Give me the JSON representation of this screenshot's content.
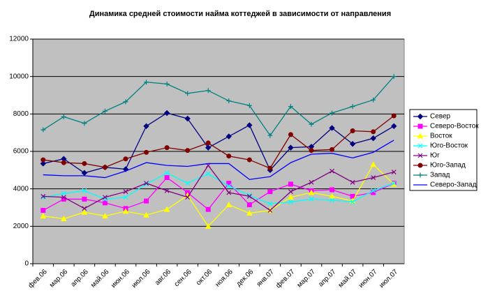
{
  "chart_data": {
    "type": "line",
    "title": "Динамика средней стоимости найма коттеджей в зависимости от направления",
    "categories": [
      "фев.06",
      "мар.06",
      "апр.06",
      "май.06",
      "июн.06",
      "июл.06",
      "авг.06",
      "сен.06",
      "окт.06",
      "ноя.06",
      "дек.06",
      "янв.07",
      "фев.07",
      "мар.07",
      "апр.07",
      "май.07",
      "июн.07",
      "июл.07"
    ],
    "ylim": [
      0,
      12000
    ],
    "yticks": [
      0,
      2000,
      4000,
      6000,
      8000,
      10000,
      12000
    ],
    "grid": true,
    "legend": "right",
    "series": [
      {
        "name": "Север",
        "color": "#000080",
        "marker": "diamond",
        "values": [
          5350,
          5600,
          4850,
          5150,
          5050,
          7350,
          8050,
          7750,
          6200,
          6800,
          7400,
          5000,
          6200,
          6250,
          7250,
          6400,
          6700,
          7350
        ]
      },
      {
        "name": "Северо-Восток",
        "color": "#ff00ff",
        "marker": "square",
        "values": [
          2850,
          3450,
          3450,
          3250,
          2950,
          3350,
          4600,
          3800,
          2900,
          4300,
          3150,
          3850,
          4250,
          3900,
          3950,
          3600,
          3800,
          4300
        ]
      },
      {
        "name": "Восток",
        "color": "#ffff00",
        "marker": "triangle",
        "values": [
          2550,
          2400,
          2750,
          2550,
          2800,
          2600,
          2900,
          3650,
          2000,
          3150,
          2700,
          2850,
          3550,
          3800,
          3600,
          3350,
          5300,
          4250
        ]
      },
      {
        "name": "Юго-Восток",
        "color": "#00ffff",
        "marker": "x",
        "values": [
          3550,
          3750,
          3900,
          3450,
          3550,
          4250,
          4850,
          4300,
          4800,
          4150,
          3650,
          3200,
          3300,
          3450,
          3400,
          3300,
          3900,
          4300
        ]
      },
      {
        "name": "Юг",
        "color": "#800080",
        "marker": "x",
        "values": [
          3600,
          3550,
          2950,
          3550,
          3850,
          4300,
          3900,
          3550,
          5250,
          3800,
          3600,
          2850,
          3850,
          4350,
          4950,
          4350,
          4600,
          4900
        ]
      },
      {
        "name": "Юго-Запад",
        "color": "#800000",
        "marker": "circle",
        "values": [
          5550,
          5400,
          5350,
          5150,
          5600,
          5950,
          6200,
          6050,
          6450,
          5750,
          5550,
          5100,
          6900,
          6050,
          6100,
          7100,
          7050,
          7900
        ]
      },
      {
        "name": "Запад",
        "color": "#008080",
        "marker": "plus",
        "values": [
          7150,
          7850,
          7500,
          8150,
          8650,
          9700,
          9600,
          9100,
          9250,
          8700,
          8450,
          6850,
          8400,
          7450,
          8050,
          8400,
          8750,
          10000
        ]
      },
      {
        "name": "Северо-Запад",
        "color": "#0000ff",
        "marker": "none",
        "values": [
          4750,
          4700,
          4700,
          4600,
          4950,
          5400,
          5250,
          5200,
          5350,
          5350,
          4500,
          4650,
          5400,
          5850,
          5900,
          5650,
          5950,
          6600
        ]
      }
    ]
  }
}
